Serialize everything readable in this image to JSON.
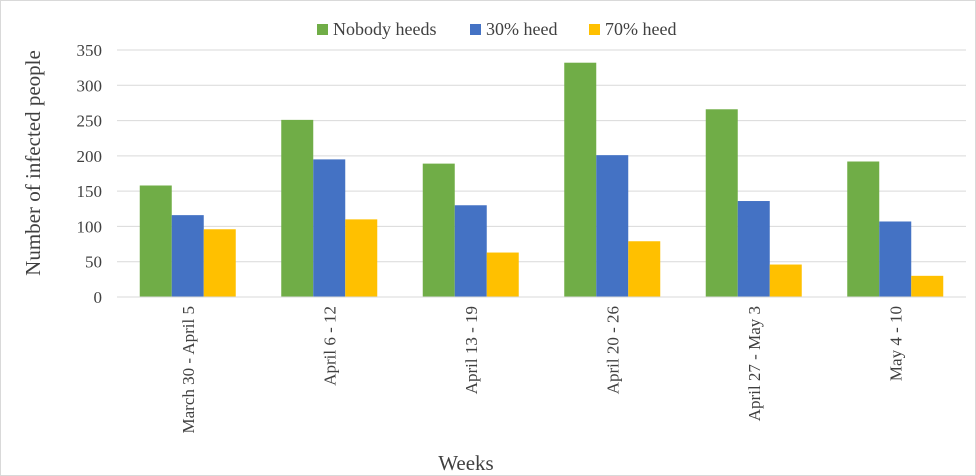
{
  "chart_data": {
    "type": "bar",
    "title": "",
    "xlabel": "Weeks",
    "ylabel": "Number of infected people",
    "ylim": [
      0,
      350
    ],
    "yticks": [
      0,
      50,
      100,
      150,
      200,
      250,
      300,
      350
    ],
    "grid": true,
    "legend_position": "top",
    "categories": [
      "March 30 - April 5",
      "April 6 - 12",
      "April 13 - 19",
      "April 20 - 26",
      "April 27 - May 3",
      "May 4 - 10"
    ],
    "series": [
      {
        "name": "Nobody heeds",
        "color": "#70ad47",
        "values": [
          158,
          251,
          189,
          332,
          266,
          192
        ]
      },
      {
        "name": "30% heed",
        "color": "#4472c4",
        "values": [
          116,
          195,
          130,
          201,
          136,
          107
        ]
      },
      {
        "name": "70% heed",
        "color": "#ffc000",
        "values": [
          96,
          110,
          63,
          79,
          46,
          30
        ]
      }
    ]
  }
}
